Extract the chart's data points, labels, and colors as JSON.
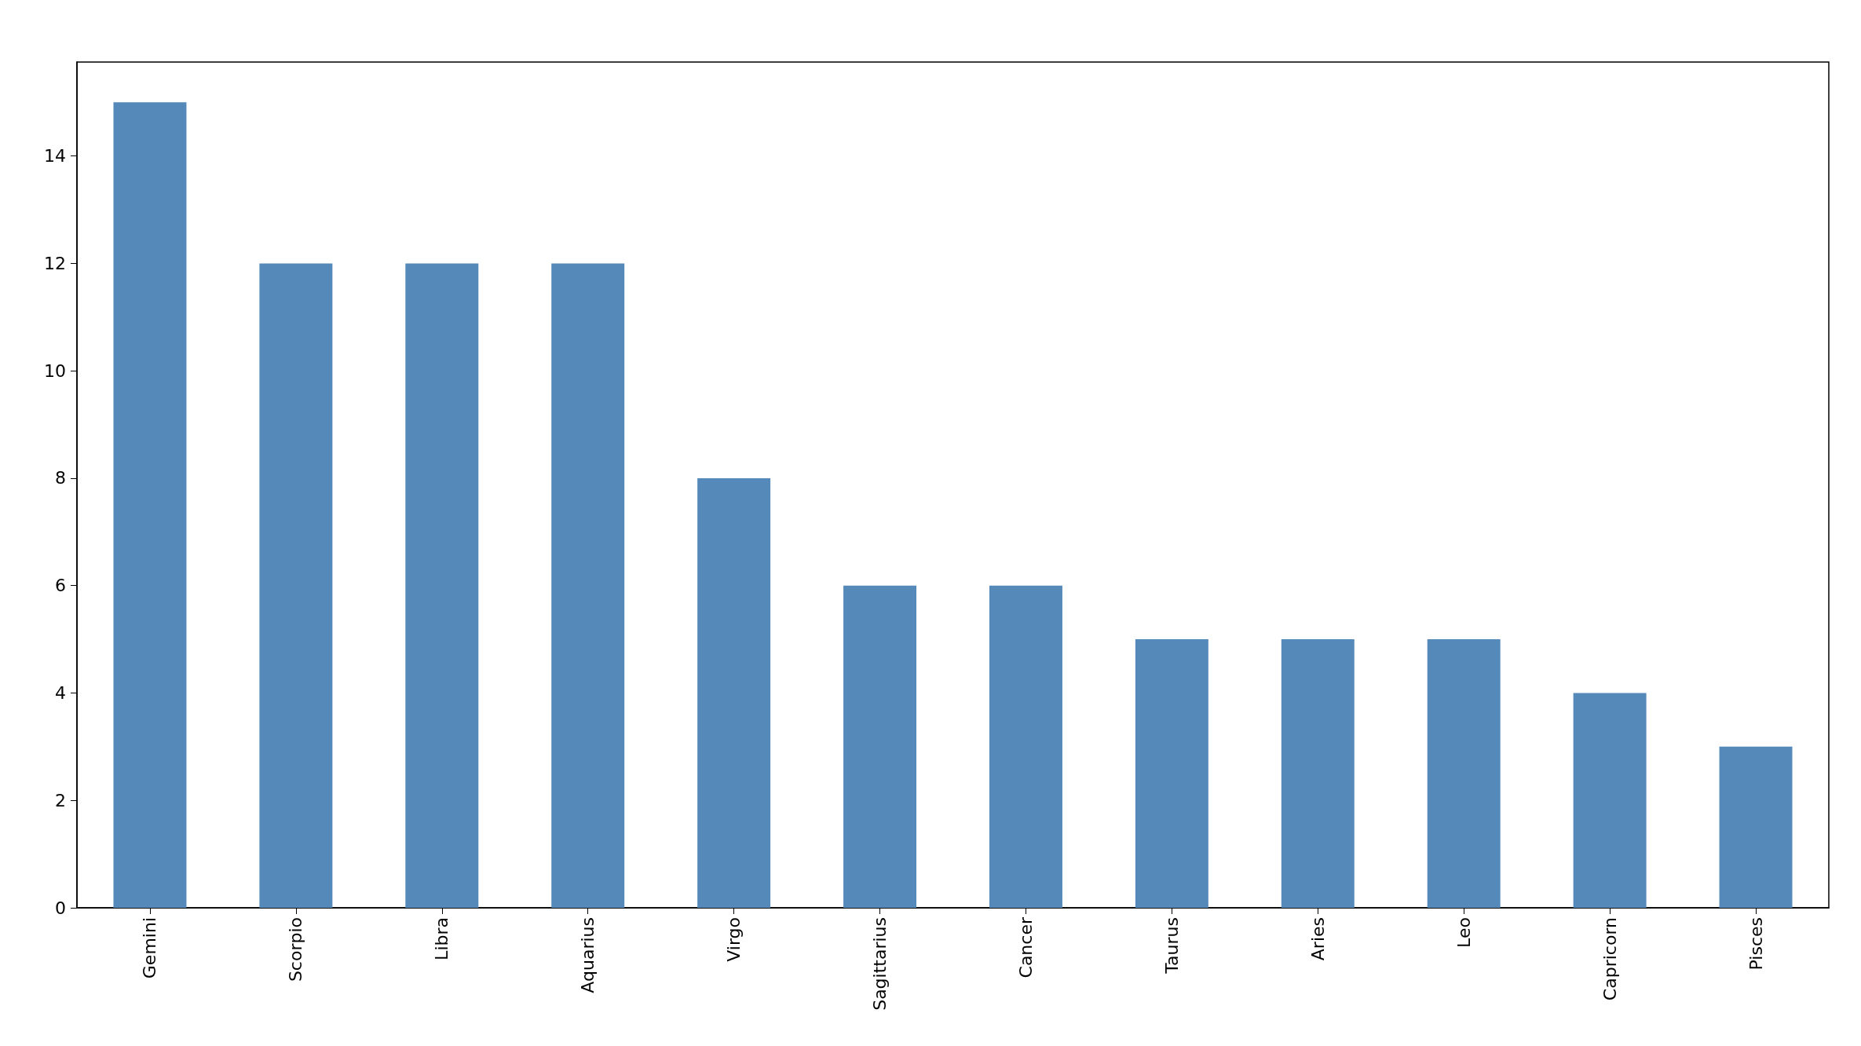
{
  "chart_data": {
    "type": "bar",
    "categories": [
      "Gemini",
      "Scorpio",
      "Libra",
      "Aquarius",
      "Virgo",
      "Sagittarius",
      "Cancer",
      "Taurus",
      "Aries",
      "Leo",
      "Capricorn",
      "Pisces"
    ],
    "values": [
      15,
      12,
      12,
      12,
      8,
      6,
      6,
      5,
      5,
      5,
      4,
      3
    ],
    "color": "#5589b9",
    "ylim": [
      0,
      15.75
    ],
    "yticks": [
      0,
      2,
      4,
      6,
      8,
      10,
      12,
      14
    ],
    "grid": false
  }
}
